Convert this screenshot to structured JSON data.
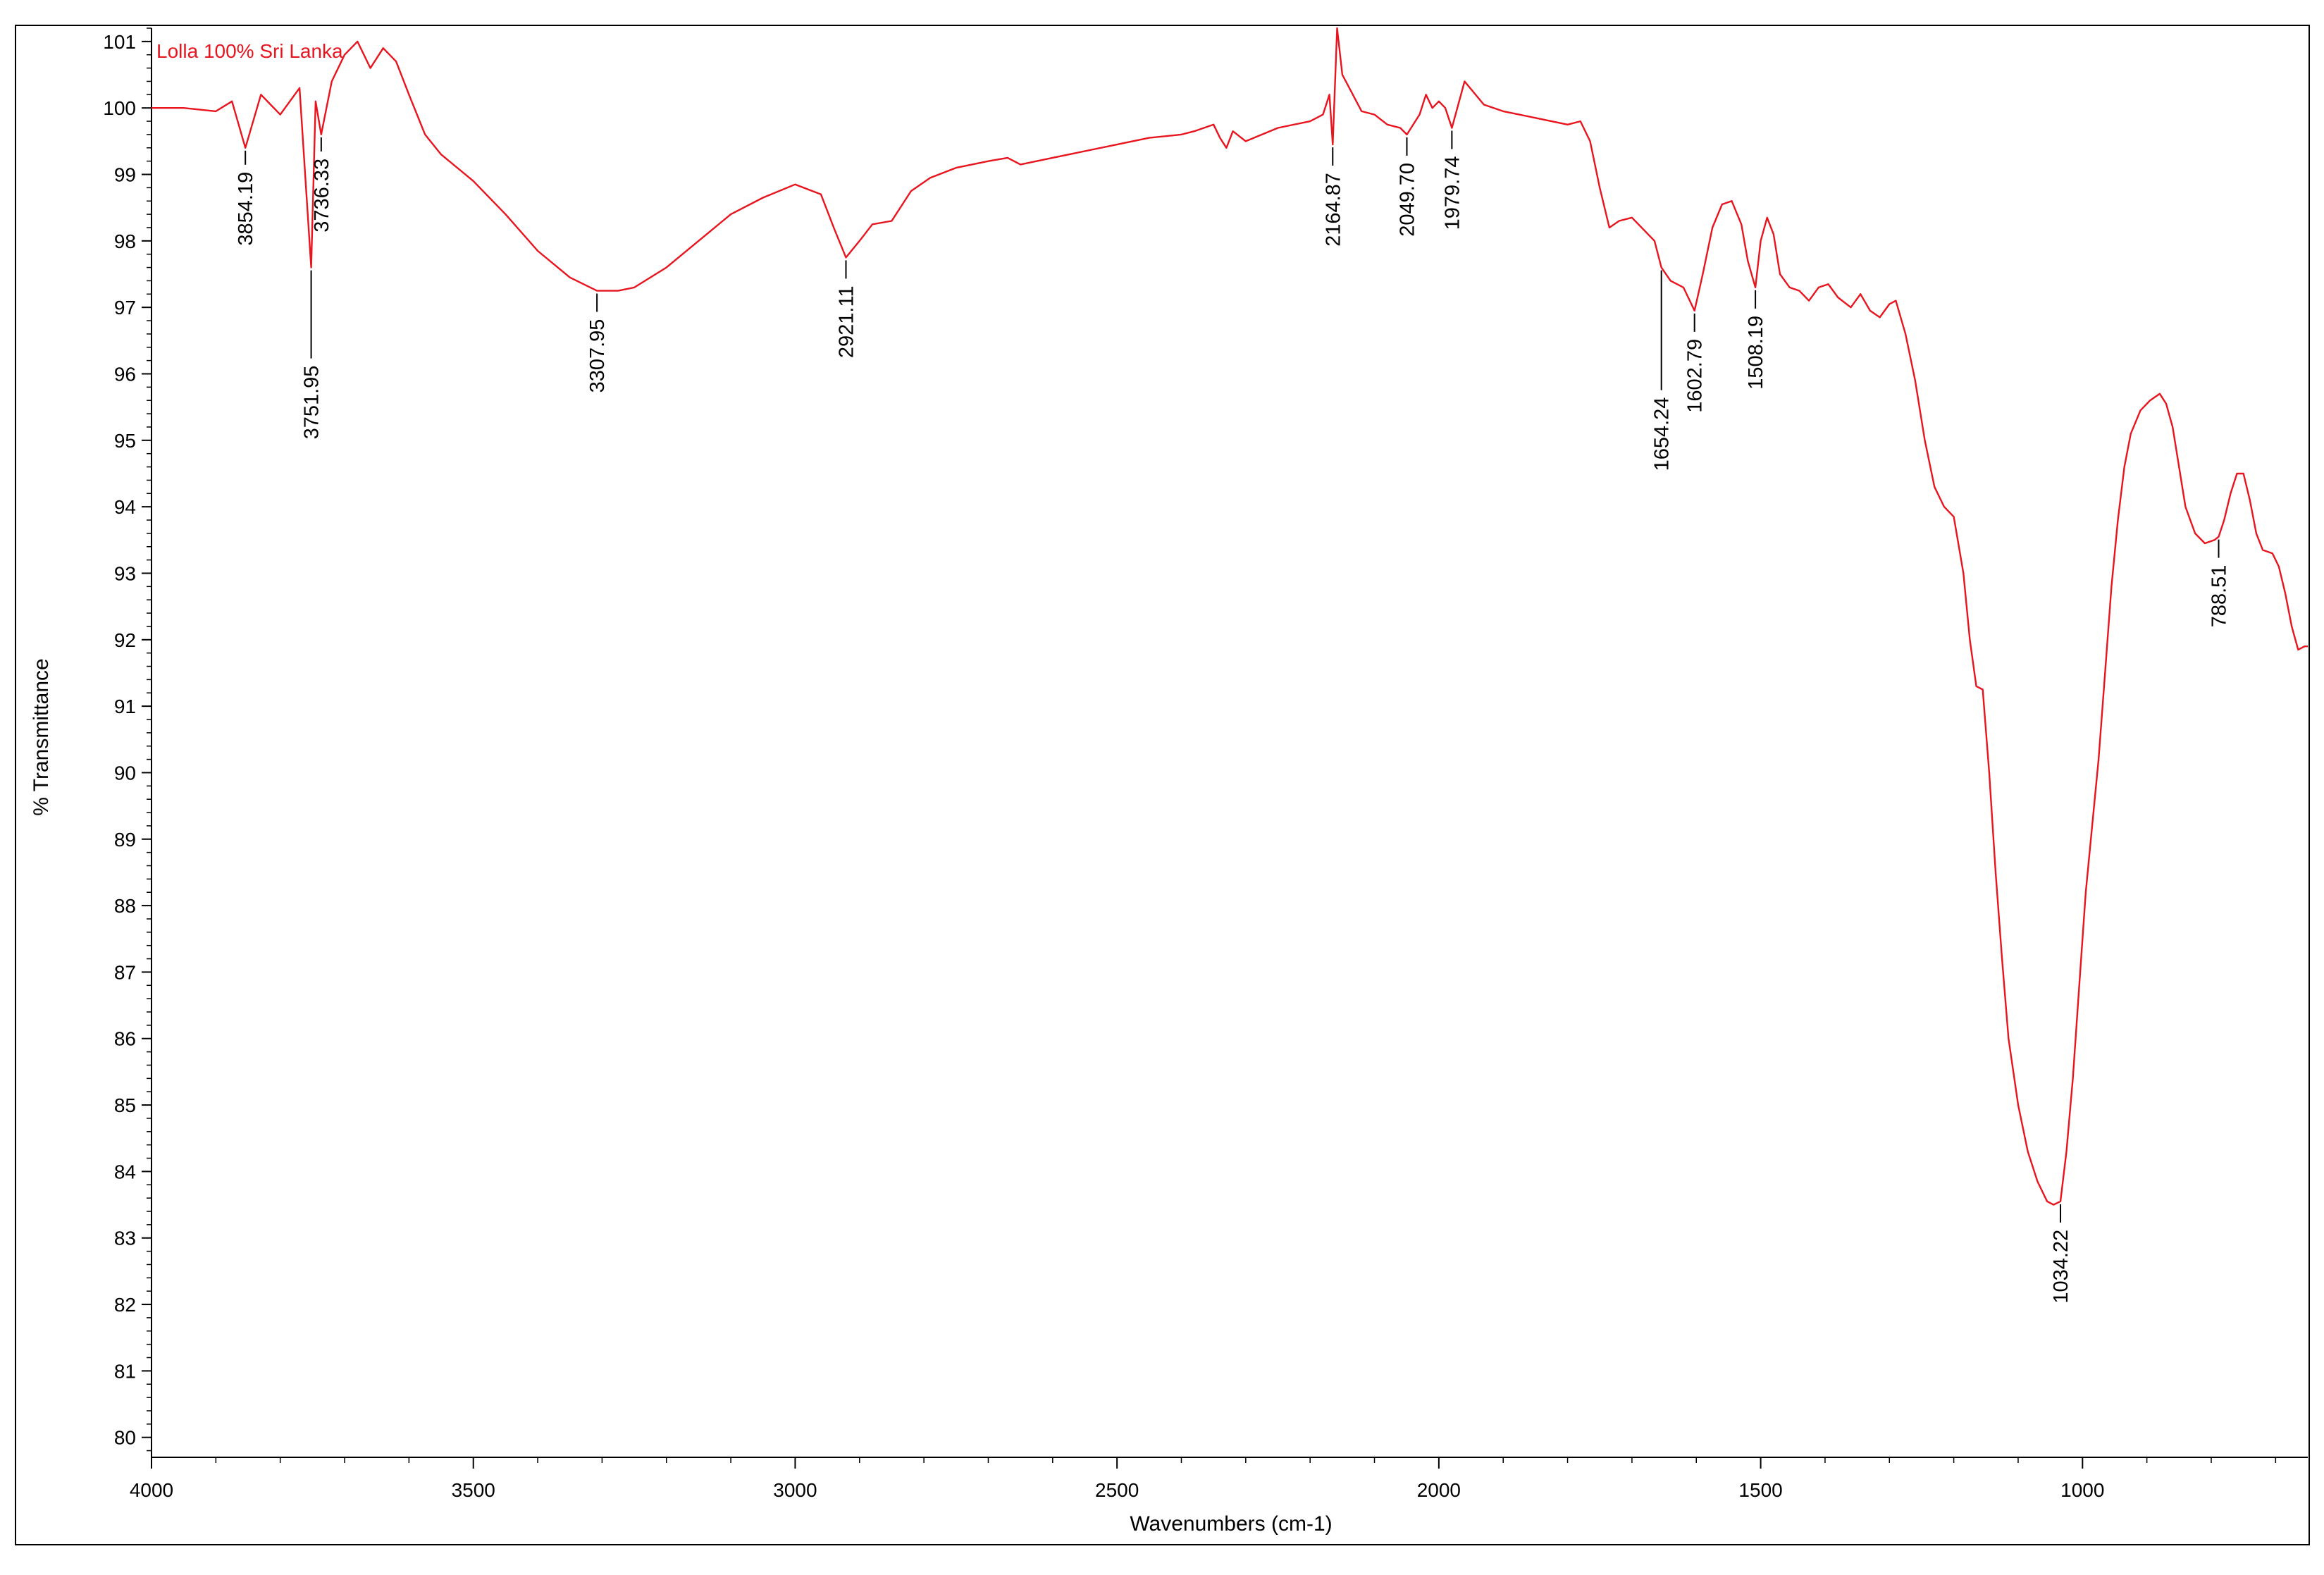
{
  "chart_data": {
    "type": "line",
    "title": "Lolla 100% Sri Lanka",
    "xlabel": "Wavenumbers (cm-1)",
    "ylabel": "% Transmittance",
    "xlim": [
      4000,
      650
    ],
    "ylim": [
      79.7,
      101.2
    ],
    "x_ticks": [
      4000,
      3500,
      3000,
      2500,
      2000,
      1500,
      1000
    ],
    "y_ticks": [
      80,
      81,
      82,
      83,
      84,
      85,
      86,
      87,
      88,
      89,
      90,
      91,
      92,
      93,
      94,
      95,
      96,
      97,
      98,
      99,
      100,
      101
    ],
    "grid": false,
    "series": [
      {
        "name": "Lolla 100% Sri Lanka",
        "color": "#e8141e",
        "points": [
          [
            4000,
            100.0
          ],
          [
            3950,
            100.0
          ],
          [
            3900,
            99.95
          ],
          [
            3875,
            100.1
          ],
          [
            3854.19,
            99.4
          ],
          [
            3830,
            100.2
          ],
          [
            3800,
            99.9
          ],
          [
            3770,
            100.3
          ],
          [
            3751.95,
            97.6
          ],
          [
            3745,
            100.1
          ],
          [
            3736.33,
            99.6
          ],
          [
            3720,
            100.4
          ],
          [
            3700,
            100.8
          ],
          [
            3680,
            101.0
          ],
          [
            3660,
            100.6
          ],
          [
            3640,
            100.9
          ],
          [
            3620,
            100.7
          ],
          [
            3600,
            100.2
          ],
          [
            3575,
            99.6
          ],
          [
            3550,
            99.3
          ],
          [
            3500,
            98.9
          ],
          [
            3450,
            98.4
          ],
          [
            3400,
            97.85
          ],
          [
            3350,
            97.45
          ],
          [
            3307.95,
            97.25
          ],
          [
            3275,
            97.25
          ],
          [
            3250,
            97.3
          ],
          [
            3200,
            97.6
          ],
          [
            3150,
            98.0
          ],
          [
            3100,
            98.4
          ],
          [
            3050,
            98.65
          ],
          [
            3000,
            98.85
          ],
          [
            2960,
            98.7
          ],
          [
            2940,
            98.2
          ],
          [
            2921.11,
            97.75
          ],
          [
            2900,
            98.0
          ],
          [
            2880,
            98.25
          ],
          [
            2850,
            98.3
          ],
          [
            2820,
            98.75
          ],
          [
            2790,
            98.95
          ],
          [
            2750,
            99.1
          ],
          [
            2700,
            99.2
          ],
          [
            2670,
            99.25
          ],
          [
            2650,
            99.15
          ],
          [
            2600,
            99.25
          ],
          [
            2500,
            99.45
          ],
          [
            2450,
            99.55
          ],
          [
            2400,
            99.6
          ],
          [
            2380,
            99.65
          ],
          [
            2350,
            99.75
          ],
          [
            2340,
            99.55
          ],
          [
            2330,
            99.4
          ],
          [
            2320,
            99.65
          ],
          [
            2300,
            99.5
          ],
          [
            2250,
            99.7
          ],
          [
            2200,
            99.8
          ],
          [
            2180,
            99.9
          ],
          [
            2170,
            100.2
          ],
          [
            2164.87,
            99.45
          ],
          [
            2158,
            101.2
          ],
          [
            2150,
            100.5
          ],
          [
            2120,
            99.95
          ],
          [
            2100,
            99.9
          ],
          [
            2080,
            99.75
          ],
          [
            2060,
            99.7
          ],
          [
            2049.7,
            99.6
          ],
          [
            2030,
            99.9
          ],
          [
            2020,
            100.2
          ],
          [
            2010,
            100.0
          ],
          [
            2000,
            100.1
          ],
          [
            1990,
            100.0
          ],
          [
            1979.74,
            99.7
          ],
          [
            1960,
            100.4
          ],
          [
            1930,
            100.05
          ],
          [
            1900,
            99.95
          ],
          [
            1850,
            99.85
          ],
          [
            1800,
            99.75
          ],
          [
            1780,
            99.8
          ],
          [
            1765,
            99.5
          ],
          [
            1750,
            98.8
          ],
          [
            1735,
            98.2
          ],
          [
            1720,
            98.3
          ],
          [
            1700,
            98.35
          ],
          [
            1680,
            98.15
          ],
          [
            1665,
            98.0
          ],
          [
            1654.24,
            97.6
          ],
          [
            1640,
            97.4
          ],
          [
            1620,
            97.3
          ],
          [
            1602.79,
            96.95
          ],
          [
            1590,
            97.5
          ],
          [
            1575,
            98.2
          ],
          [
            1560,
            98.55
          ],
          [
            1545,
            98.6
          ],
          [
            1530,
            98.25
          ],
          [
            1520,
            97.7
          ],
          [
            1508.19,
            97.3
          ],
          [
            1500,
            98.0
          ],
          [
            1490,
            98.35
          ],
          [
            1480,
            98.1
          ],
          [
            1470,
            97.5
          ],
          [
            1455,
            97.3
          ],
          [
            1440,
            97.25
          ],
          [
            1425,
            97.1
          ],
          [
            1410,
            97.3
          ],
          [
            1395,
            97.35
          ],
          [
            1380,
            97.15
          ],
          [
            1360,
            97.0
          ],
          [
            1345,
            97.2
          ],
          [
            1330,
            96.95
          ],
          [
            1315,
            96.85
          ],
          [
            1300,
            97.05
          ],
          [
            1290,
            97.1
          ],
          [
            1275,
            96.6
          ],
          [
            1260,
            95.9
          ],
          [
            1245,
            95.0
          ],
          [
            1230,
            94.3
          ],
          [
            1215,
            94.0
          ],
          [
            1200,
            93.85
          ],
          [
            1185,
            93.0
          ],
          [
            1175,
            92.0
          ],
          [
            1165,
            91.3
          ],
          [
            1155,
            91.25
          ],
          [
            1145,
            90.0
          ],
          [
            1135,
            88.5
          ],
          [
            1125,
            87.2
          ],
          [
            1115,
            86.0
          ],
          [
            1100,
            85.0
          ],
          [
            1085,
            84.3
          ],
          [
            1070,
            83.85
          ],
          [
            1055,
            83.55
          ],
          [
            1045,
            83.5
          ],
          [
            1034.22,
            83.55
          ],
          [
            1025,
            84.3
          ],
          [
            1015,
            85.4
          ],
          [
            1005,
            86.8
          ],
          [
            995,
            88.2
          ],
          [
            985,
            89.2
          ],
          [
            975,
            90.2
          ],
          [
            965,
            91.5
          ],
          [
            955,
            92.8
          ],
          [
            945,
            93.8
          ],
          [
            935,
            94.6
          ],
          [
            925,
            95.1
          ],
          [
            910,
            95.45
          ],
          [
            895,
            95.6
          ],
          [
            880,
            95.7
          ],
          [
            870,
            95.55
          ],
          [
            860,
            95.2
          ],
          [
            850,
            94.6
          ],
          [
            840,
            94.0
          ],
          [
            825,
            93.6
          ],
          [
            810,
            93.45
          ],
          [
            795,
            93.5
          ],
          [
            788.51,
            93.55
          ],
          [
            780,
            93.8
          ],
          [
            770,
            94.2
          ],
          [
            760,
            94.5
          ],
          [
            750,
            94.5
          ],
          [
            740,
            94.1
          ],
          [
            730,
            93.6
          ],
          [
            720,
            93.35
          ],
          [
            705,
            93.3
          ],
          [
            695,
            93.1
          ],
          [
            685,
            92.7
          ],
          [
            675,
            92.2
          ],
          [
            665,
            91.85
          ],
          [
            655,
            91.9
          ],
          [
            650,
            91.9
          ]
        ]
      }
    ],
    "peaks": [
      {
        "x": 3854.19,
        "label": "3854.19"
      },
      {
        "x": 3751.95,
        "label": "3751.95"
      },
      {
        "x": 3736.33,
        "label": "3736.33"
      },
      {
        "x": 3307.95,
        "label": "3307.95"
      },
      {
        "x": 2921.11,
        "label": "2921.11"
      },
      {
        "x": 2164.87,
        "label": "2164.87"
      },
      {
        "x": 2049.7,
        "label": "2049.70"
      },
      {
        "x": 1979.74,
        "label": "1979.74"
      },
      {
        "x": 1654.24,
        "label": "1654.24"
      },
      {
        "x": 1602.79,
        "label": "1602.79"
      },
      {
        "x": 1508.19,
        "label": "1508.19"
      },
      {
        "x": 1034.22,
        "label": "1034.22"
      },
      {
        "x": 788.51,
        "label": "788.51"
      }
    ]
  }
}
